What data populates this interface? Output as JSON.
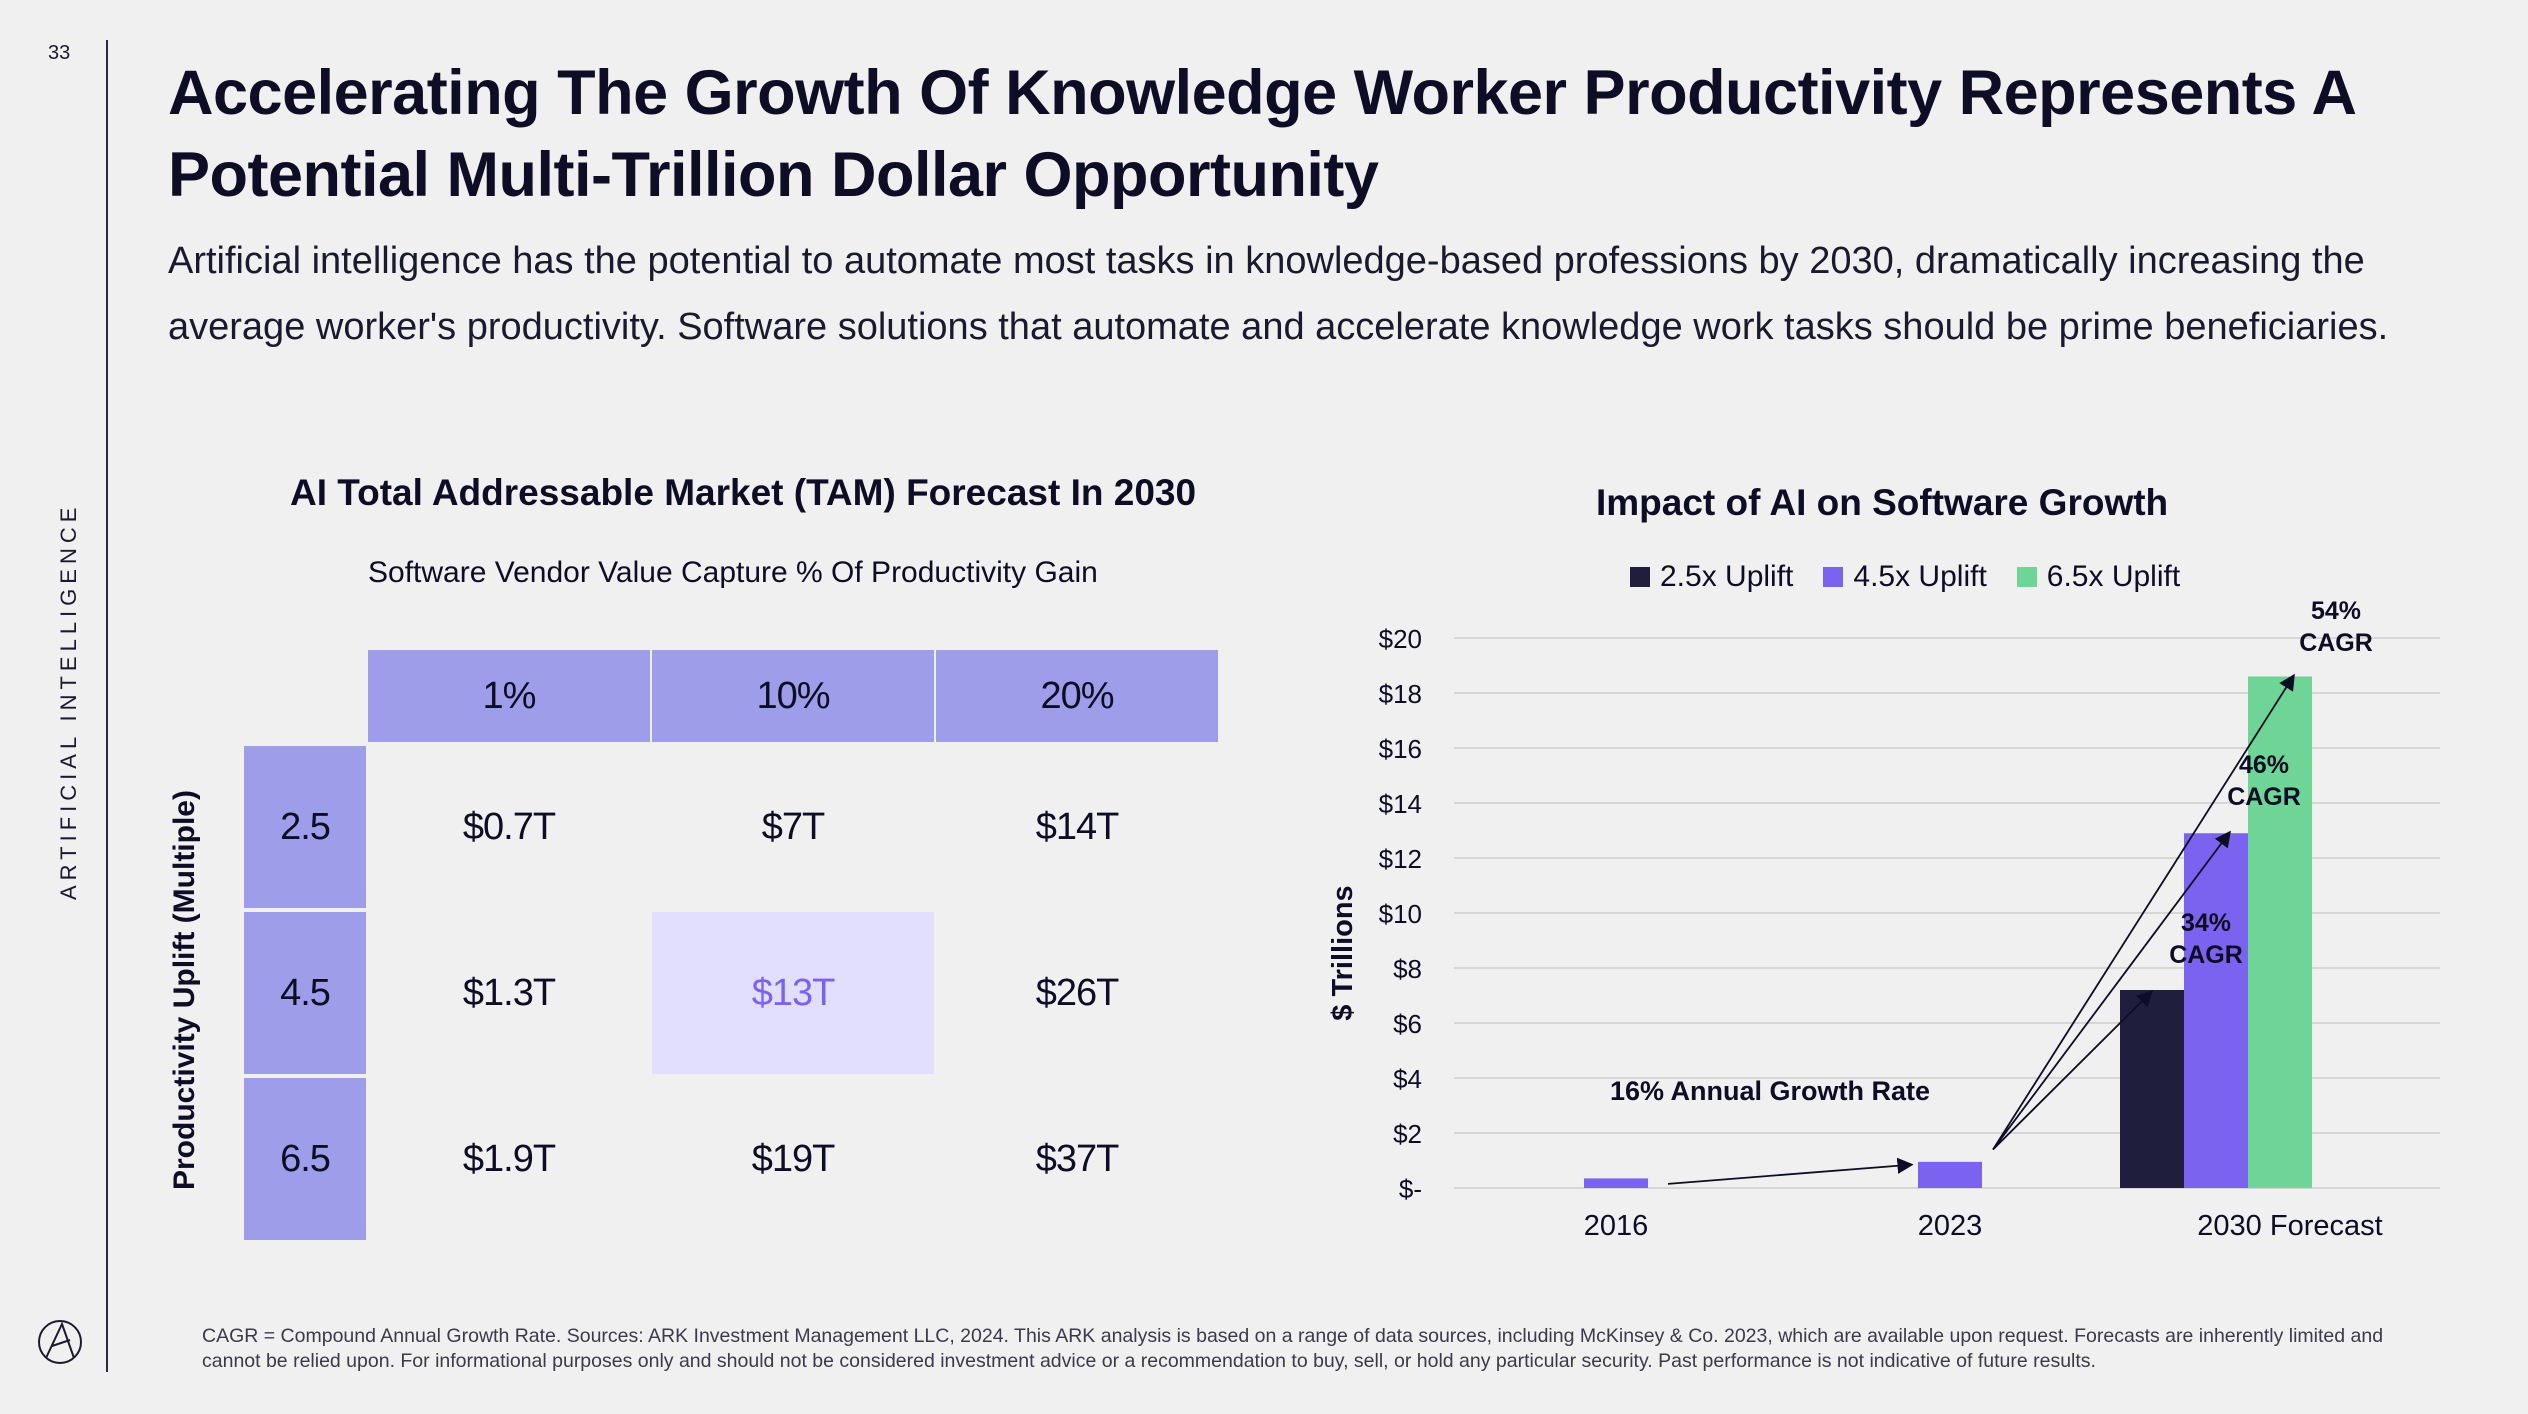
{
  "page_number": "33",
  "section_label": "ARTIFICIAL INTELLIGENCE",
  "title": "Accelerating The Growth Of Knowledge Worker Productivity Represents A Potential Multi-Trillion Dollar Opportunity",
  "subtitle": "Artificial intelligence has the potential to automate most tasks in knowledge-based professions by 2030, dramatically increasing the average worker's productivity. Software solutions that automate and accelerate knowledge work tasks should be prime beneficiaries.",
  "footnote": "CAGR = Compound Annual Growth Rate. Sources: ARK Investment Management LLC, 2024. This ARK analysis is based on a range of data sources, including McKinsey & Co. 2023, which are available upon request. Forecasts are inherently limited and cannot be relied upon. For informational purposes only and should not be considered investment advice or a recommendation to buy, sell, or hold any particular security. Past performance is not indicative of future results.",
  "colors": {
    "header_fill": "#9d9de9",
    "highlight_fill": "#e2defd",
    "highlight_text": "#7b63f0",
    "uplift_2_5": "#1f1f3d",
    "uplift_4_5": "#7b63f0",
    "uplift_6_5": "#6ed597"
  },
  "chart_data": [
    {
      "type": "table",
      "title": "AI Total Addressable Market (TAM) Forecast In 2030",
      "column_group_label": "Software Vendor Value Capture % Of Productivity Gain",
      "row_axis_label": "Productivity Uplift (Multiple)",
      "columns": [
        "1%",
        "10%",
        "20%"
      ],
      "rows": [
        "2.5",
        "4.5",
        "6.5"
      ],
      "cells": [
        [
          "$0.7T",
          "$7T",
          "$14T"
        ],
        [
          "$1.3T",
          "$13T",
          "$26T"
        ],
        [
          "$1.9T",
          "$19T",
          "$37T"
        ]
      ],
      "highlighted_cell": [
        1,
        1
      ]
    },
    {
      "type": "bar",
      "title": "Impact of AI on Software Growth",
      "ylabel": "$ Trillions",
      "ylim": [
        0,
        20
      ],
      "yticks": [
        0,
        2,
        4,
        6,
        8,
        10,
        12,
        14,
        16,
        18,
        20
      ],
      "ytick_labels": [
        "$-",
        "$2",
        "$4",
        "$6",
        "$8",
        "$10",
        "$12",
        "$14",
        "$16",
        "$18",
        "$20"
      ],
      "categories": [
        "2016",
        "2023",
        "2030 Forecast"
      ],
      "historical": [
        {
          "category": "2016",
          "value": 0.35
        },
        {
          "category": "2023",
          "value": 0.95
        }
      ],
      "series": [
        {
          "name": "2.5x Uplift",
          "values": [
            null,
            null,
            7.2
          ]
        },
        {
          "name": "4.5x Uplift",
          "values": [
            null,
            null,
            12.9
          ]
        },
        {
          "name": "6.5x Uplift",
          "values": [
            null,
            null,
            18.6
          ]
        }
      ],
      "annotations": [
        "16% Annual Growth Rate",
        "34% CAGR",
        "46% CAGR",
        "54% CAGR"
      ],
      "grid": true,
      "legend_position": "top"
    }
  ]
}
